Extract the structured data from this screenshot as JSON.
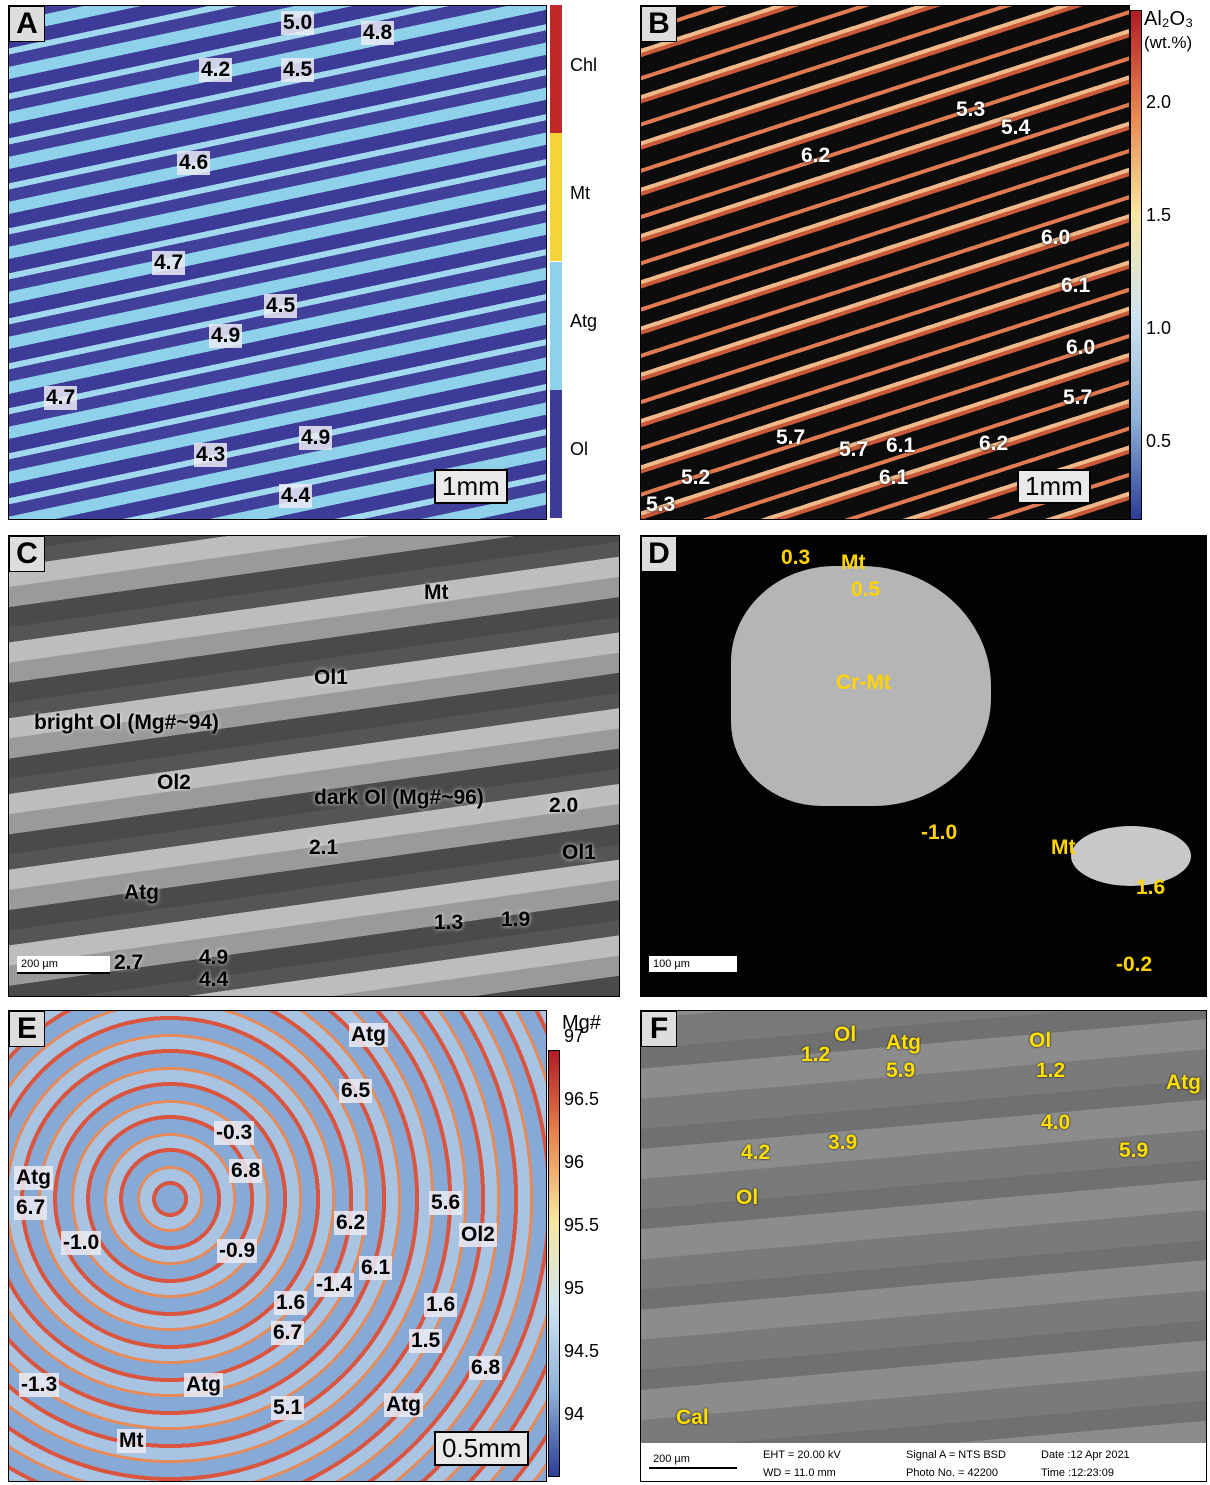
{
  "panels": [
    {
      "letter": "A",
      "labels": [
        "5.0",
        "4.8",
        "4.2",
        "4.5",
        "4.6",
        "4.7",
        "4.5",
        "4.9",
        "4.7",
        "4.9",
        "4.3",
        "4.4"
      ],
      "scale_bar": "1mm",
      "legend": [
        "Chl",
        "Mt",
        "Atg",
        "Ol"
      ]
    },
    {
      "letter": "B",
      "labels": [
        "5.3",
        "5.4",
        "6.2",
        "6.0",
        "6.1",
        "6.0",
        "5.7",
        "5.7",
        "5.7",
        "6.1",
        "6.2",
        "6.1",
        "5.2",
        "5.3"
      ],
      "scale_bar": "1mm",
      "colorbar": {
        "title": "Al₂O₃",
        "unit": "(wt.%)",
        "ticks": [
          "2.0",
          "1.5",
          "1.0",
          "0.5"
        ]
      }
    },
    {
      "letter": "C",
      "labels": [
        "Mt",
        "Ol1",
        "bright Ol (Mg#~94)",
        "Ol2",
        "dark Ol (Mg#~96)",
        "2.0",
        "Ol1",
        "2.1",
        "Atg",
        "1.3",
        "1.9",
        "2.7",
        "4.9",
        "4.4"
      ],
      "scale_bar": "200 µm"
    },
    {
      "letter": "D",
      "labels": [
        "0.3",
        "Mt",
        "0.5",
        "Cr-Mt",
        "-1.0",
        "Mt",
        "1.6",
        "-0.2"
      ],
      "scale_bar": "100 µm"
    },
    {
      "letter": "E",
      "labels": [
        "Atg",
        "6.5",
        "-0.3",
        "6.8",
        "Atg",
        "6.7",
        "-1.0",
        "5.6",
        "Ol2",
        "6.2",
        "-0.9",
        "6.1",
        "-1.4",
        "1.6",
        "1.6",
        "6.7",
        "1.5",
        "Atg",
        "6.8",
        "Atg",
        "5.1",
        "-1.3",
        "Mt"
      ],
      "scale_bar": "0.5mm",
      "colorbar": {
        "title": "Mg#",
        "ticks": [
          "97",
          "96.5",
          "96",
          "95.5",
          "95",
          "94.5",
          "94"
        ]
      }
    },
    {
      "letter": "F",
      "labels": [
        "1.2",
        "Ol",
        "Atg",
        "5.9",
        "Ol",
        "1.2",
        "4.0",
        "Atg",
        "5.9",
        "4.2",
        "3.9",
        "Ol",
        "Cal"
      ],
      "scale_bar": "200 µm",
      "footer": [
        "EHT = 20.00 kV",
        "WD = 11.0 mm",
        "Signal A = NTS BSD",
        "Photo No. = 42200",
        "Date :12 Apr 2021",
        "Time :12:23:09"
      ]
    }
  ]
}
